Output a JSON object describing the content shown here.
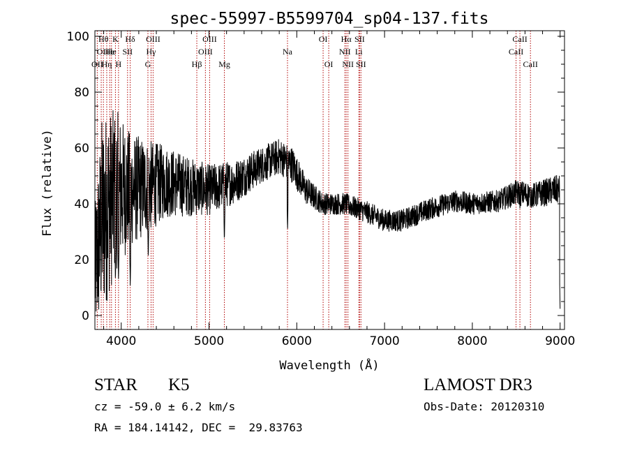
{
  "chart_data": {
    "type": "line",
    "title": "spec-55997-B5599704_sp04-137.fits",
    "xlabel": "Wavelength (Å)",
    "ylabel": "Flux (relative)",
    "xlim": [
      3700,
      9050
    ],
    "ylim": [
      -5,
      102
    ],
    "xticks": [
      4000,
      5000,
      6000,
      7000,
      8000,
      9000
    ],
    "yticks": [
      0,
      20,
      40,
      60,
      80,
      100
    ],
    "series": [
      {
        "name": "spectrum",
        "envelope": [
          {
            "x": 3700,
            "y": 15,
            "amp": 18
          },
          {
            "x": 3780,
            "y": 35,
            "amp": 28
          },
          {
            "x": 3850,
            "y": 40,
            "amp": 26
          },
          {
            "x": 3950,
            "y": 45,
            "amp": 22
          },
          {
            "x": 4100,
            "y": 45,
            "amp": 16
          },
          {
            "x": 4300,
            "y": 46,
            "amp": 13
          },
          {
            "x": 4500,
            "y": 48,
            "amp": 10
          },
          {
            "x": 4800,
            "y": 46,
            "amp": 8
          },
          {
            "x": 5000,
            "y": 45,
            "amp": 7
          },
          {
            "x": 5300,
            "y": 48,
            "amp": 6
          },
          {
            "x": 5600,
            "y": 54,
            "amp": 5
          },
          {
            "x": 5800,
            "y": 57,
            "amp": 5
          },
          {
            "x": 5950,
            "y": 54,
            "amp": 5
          },
          {
            "x": 6100,
            "y": 45,
            "amp": 4
          },
          {
            "x": 6300,
            "y": 40,
            "amp": 3
          },
          {
            "x": 6550,
            "y": 40,
            "amp": 3
          },
          {
            "x": 6800,
            "y": 37,
            "amp": 3
          },
          {
            "x": 7000,
            "y": 34,
            "amp": 3
          },
          {
            "x": 7200,
            "y": 34,
            "amp": 3
          },
          {
            "x": 7500,
            "y": 38,
            "amp": 3
          },
          {
            "x": 7800,
            "y": 41,
            "amp": 3
          },
          {
            "x": 8000,
            "y": 40,
            "amp": 3
          },
          {
            "x": 8300,
            "y": 41,
            "amp": 3
          },
          {
            "x": 8500,
            "y": 44,
            "amp": 3.5
          },
          {
            "x": 8700,
            "y": 43,
            "amp": 3.5
          },
          {
            "x": 8950,
            "y": 45,
            "amp": 4
          }
        ],
        "features": [
          {
            "x": 3934,
            "y": 12
          },
          {
            "x": 3969,
            "y": 12
          },
          {
            "x": 4103,
            "y": 10
          },
          {
            "x": 4308,
            "y": 20
          },
          {
            "x": 5175,
            "y": 26
          },
          {
            "x": 5895,
            "y": 30
          },
          {
            "x": 8542,
            "y": 38
          },
          {
            "x": 8662,
            "y": 38
          },
          {
            "x": 9000,
            "y": 2
          }
        ]
      }
    ],
    "lines": [
      {
        "x": 3727,
        "label": "OII",
        "row": 2
      },
      {
        "x": 3772,
        "label": "OI",
        "row": 1
      },
      {
        "x": 3797,
        "label": "Hθ",
        "row": 0
      },
      {
        "x": 3835,
        "label": "Hη",
        "row": 2
      },
      {
        "x": 3869,
        "label": "He",
        "row": 1
      },
      {
        "x": 3889,
        "label": "He",
        "row": 1
      },
      {
        "x": 3934,
        "label": "K",
        "row": 0
      },
      {
        "x": 3969,
        "label": "H",
        "row": 2
      },
      {
        "x": 4072,
        "label": "SII",
        "row": 1
      },
      {
        "x": 4102,
        "label": "Hδ",
        "row": 0
      },
      {
        "x": 4304,
        "label": "G",
        "row": 2
      },
      {
        "x": 4340,
        "label": "Hγ",
        "row": 1
      },
      {
        "x": 4363,
        "label": "OIII",
        "row": 0
      },
      {
        "x": 4861,
        "label": "Hβ",
        "row": 2
      },
      {
        "x": 4959,
        "label": "OIII",
        "row": 1
      },
      {
        "x": 5007,
        "label": "OIII",
        "row": 0
      },
      {
        "x": 5175,
        "label": "Mg",
        "row": 2
      },
      {
        "x": 5894,
        "label": "Na",
        "row": 1
      },
      {
        "x": 6300,
        "label": "OI",
        "row": 0
      },
      {
        "x": 6364,
        "label": "OI",
        "row": 2
      },
      {
        "x": 6548,
        "label": "NII",
        "row": 1
      },
      {
        "x": 6563,
        "label": "Hα",
        "row": 0
      },
      {
        "x": 6583,
        "label": "NII",
        "row": 2
      },
      {
        "x": 6707,
        "label": "Li",
        "row": 1
      },
      {
        "x": 6716,
        "label": "SII",
        "row": 0
      },
      {
        "x": 6731,
        "label": "SII",
        "row": 2
      },
      {
        "x": 8498,
        "label": "CaII",
        "row": 1
      },
      {
        "x": 8542,
        "label": "CaII",
        "row": 0
      },
      {
        "x": 8662,
        "label": "CaII",
        "row": 2
      }
    ]
  },
  "info": {
    "class": "STAR",
    "subclass": "K5",
    "survey": "LAMOST DR3",
    "cz": "cz = -59.0 ± 6.2 km/s",
    "obs_date": "Obs-Date: 20120310",
    "radec": "RA = 184.14142, DEC =  29.83763"
  }
}
